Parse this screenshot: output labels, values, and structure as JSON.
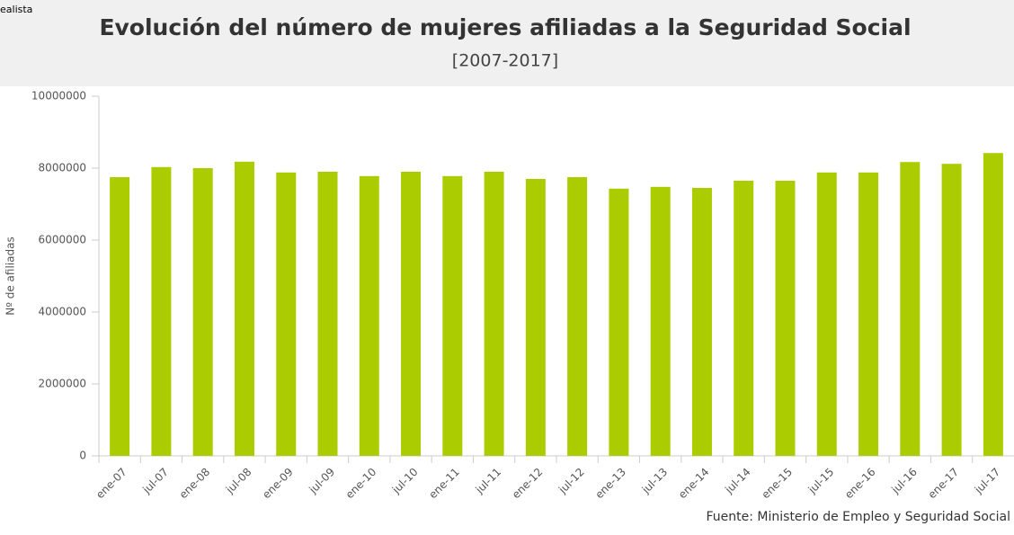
{
  "chart_data": {
    "type": "bar",
    "brand": "ealista",
    "title": "Evolución del número de mujeres afiliadas a la Seguridad Social",
    "subtitle": "[2007-2017]",
    "y_label": "Nº de afiliadas",
    "source": "Fuente: Ministerio de Empleo y Seguridad Social",
    "categories": [
      "ene-07",
      "jul-07",
      "ene-08",
      "jul-08",
      "ene-09",
      "jul-09",
      "ene-10",
      "jul-10",
      "ene-11",
      "jul-11",
      "ene-12",
      "jul-12",
      "ene-13",
      "jul-13",
      "ene-14",
      "jul-14",
      "ene-15",
      "jul-15",
      "ene-16",
      "jul-16",
      "ene-17",
      "jul-17"
    ],
    "values": [
      7750000,
      8030000,
      8000000,
      8180000,
      7880000,
      7900000,
      7780000,
      7900000,
      7780000,
      7900000,
      7700000,
      7750000,
      7430000,
      7480000,
      7450000,
      7650000,
      7650000,
      7880000,
      7880000,
      8170000,
      8120000,
      8420000
    ],
    "color": "#abcd00",
    "ylim": [
      0,
      10000000
    ],
    "yticks": [
      0,
      2000000,
      4000000,
      6000000,
      8000000,
      10000000
    ],
    "grid": false
  }
}
